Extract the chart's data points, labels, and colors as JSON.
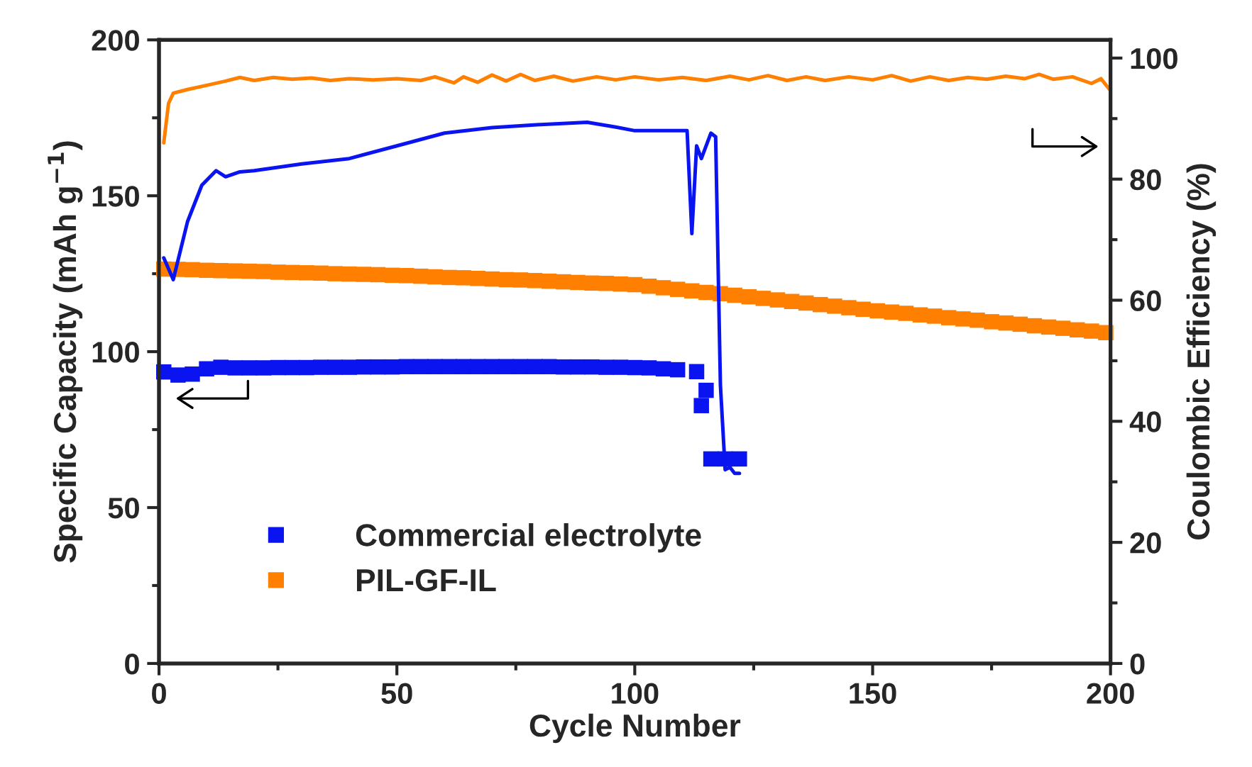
{
  "chart_data": {
    "type": "scatter",
    "xlabel": "Cycle Number",
    "ylabel": "Specific Capacity (mAh g$^{−1}$)",
    "y2label": "Coulombic Efficiency (%)",
    "xlim": [
      0,
      200
    ],
    "xticks": [
      0,
      {
        "value": 25,
        "label": null
      },
      50,
      {
        "value": 75,
        "label": null
      },
      100,
      {
        "value": 125,
        "label": null
      },
      150,
      {
        "value": 175,
        "label": null
      },
      200
    ],
    "ylim": [
      0,
      200
    ],
    "yticks": [
      0,
      {
        "value": 25,
        "label": null
      },
      50,
      {
        "value": 75,
        "label": null
      },
      100,
      {
        "value": 125,
        "label": null
      },
      150,
      {
        "value": 175,
        "label": null
      },
      200
    ],
    "y2lim": [
      0,
      103
    ],
    "y2ticks": [
      0,
      {
        "value": 10,
        "label": null
      },
      20,
      {
        "value": 30,
        "label": null
      },
      40,
      {
        "value": 50,
        "label": null
      },
      60,
      {
        "value": 70,
        "label": null
      },
      80,
      {
        "value": 90,
        "label": null
      },
      100
    ],
    "legend": "bottom left",
    "grid": false,
    "series": [
      {
        "name": "Commercial electrolyte",
        "marker": "square",
        "color": "#0a14f0",
        "x": [
          1,
          4,
          7,
          10,
          13,
          16,
          19,
          22,
          25,
          28,
          31,
          34,
          37,
          40,
          43,
          46,
          49,
          52,
          55,
          58,
          61,
          64,
          67,
          70,
          73,
          76,
          79,
          82,
          85,
          88,
          91,
          94,
          97,
          100,
          103,
          106,
          109,
          113,
          114,
          115,
          116,
          119,
          122
        ],
        "values": [
          93.5,
          92.5,
          92.8,
          94.5,
          95.0,
          94.8,
          94.8,
          94.8,
          94.9,
          94.9,
          94.9,
          95.0,
          95.0,
          95.0,
          95.1,
          95.1,
          95.1,
          95.2,
          95.2,
          95.2,
          95.2,
          95.2,
          95.2,
          95.2,
          95.2,
          95.2,
          95.2,
          95.2,
          95.1,
          95.1,
          95.1,
          95.0,
          95.0,
          94.9,
          94.8,
          94.5,
          94.2,
          93.6,
          82.7,
          87.6,
          65.6,
          65.6,
          65.6
        ]
      },
      {
        "name": "PIL-GF-IL",
        "marker": "square",
        "color": "#ff8000",
        "x": [
          1,
          4,
          7,
          10,
          13,
          16,
          19,
          22,
          25,
          28,
          31,
          34,
          37,
          40,
          43,
          46,
          49,
          52,
          55,
          58,
          61,
          64,
          67,
          70,
          73,
          76,
          79,
          82,
          85,
          88,
          91,
          94,
          97,
          100,
          103,
          106,
          109,
          112,
          115,
          118,
          121,
          124,
          127,
          130,
          133,
          136,
          139,
          142,
          145,
          148,
          151,
          154,
          157,
          160,
          163,
          166,
          169,
          172,
          175,
          178,
          181,
          184,
          187,
          190,
          193,
          196,
          199
        ],
        "values": [
          126.5,
          126.4,
          126.3,
          126.1,
          126.0,
          125.9,
          125.8,
          125.7,
          125.5,
          125.4,
          125.3,
          125.2,
          125.0,
          124.9,
          124.8,
          124.7,
          124.5,
          124.4,
          124.2,
          124.0,
          123.8,
          123.7,
          123.5,
          123.3,
          123.1,
          123.0,
          122.8,
          122.6,
          122.4,
          122.2,
          122.0,
          121.9,
          121.7,
          121.5,
          121.0,
          120.5,
          120.0,
          119.5,
          119.0,
          118.6,
          118.1,
          117.6,
          117.1,
          116.6,
          116.1,
          115.6,
          115.1,
          114.6,
          114.1,
          113.6,
          113.1,
          112.7,
          112.3,
          111.8,
          111.4,
          110.9,
          110.5,
          110.1,
          109.6,
          109.2,
          108.8,
          108.3,
          107.9,
          107.5,
          107.0,
          106.6,
          106.1
        ]
      },
      {
        "type": "line",
        "axis": "y2",
        "color": "#0a14f0",
        "x": [
          1,
          3,
          6,
          9,
          12,
          14,
          17,
          20,
          30,
          40,
          50,
          60,
          70,
          80,
          90,
          96,
          100,
          111,
          112,
          113,
          114,
          116,
          117,
          118,
          119,
          120,
          121,
          122
        ],
        "values": [
          67,
          63.4,
          73,
          79,
          81.4,
          80.4,
          81.2,
          81.4,
          82.5,
          83.4,
          85.5,
          87.6,
          88.5,
          89,
          89.4,
          88.6,
          88,
          88,
          71,
          85.5,
          83.4,
          87.6,
          87,
          46,
          32,
          32.4,
          31.4,
          31.4
        ]
      },
      {
        "type": "line",
        "axis": "y2",
        "color": "#ff8000",
        "x": [
          1,
          2,
          3,
          6,
          10,
          14,
          17,
          20,
          24,
          28,
          32,
          36,
          40,
          45,
          50,
          55,
          58,
          62,
          64,
          67,
          70,
          73,
          76,
          79,
          83,
          87,
          92,
          96,
          100,
          105,
          110,
          115,
          120,
          124,
          128,
          132,
          136,
          140,
          145,
          150,
          154,
          158,
          162,
          166,
          170,
          174,
          178,
          182,
          185,
          188,
          192,
          196,
          198,
          200
        ],
        "values": [
          86,
          92.5,
          94.2,
          94.8,
          95.5,
          96.2,
          96.8,
          96.3,
          96.8,
          96.5,
          96.7,
          96.3,
          96.6,
          96.4,
          96.6,
          96.3,
          96.9,
          95.9,
          96.9,
          96.0,
          97.2,
          96.2,
          97.3,
          96.3,
          97.0,
          96.2,
          96.9,
          96.4,
          96.9,
          96.4,
          96.8,
          96.3,
          97.0,
          96.4,
          97.1,
          96.3,
          96.9,
          96.3,
          96.9,
          96.4,
          97.1,
          96.2,
          96.9,
          96.3,
          96.8,
          96.5,
          97.0,
          96.6,
          97.3,
          96.5,
          96.9,
          95.8,
          96.6,
          94.6
        ]
      }
    ]
  }
}
